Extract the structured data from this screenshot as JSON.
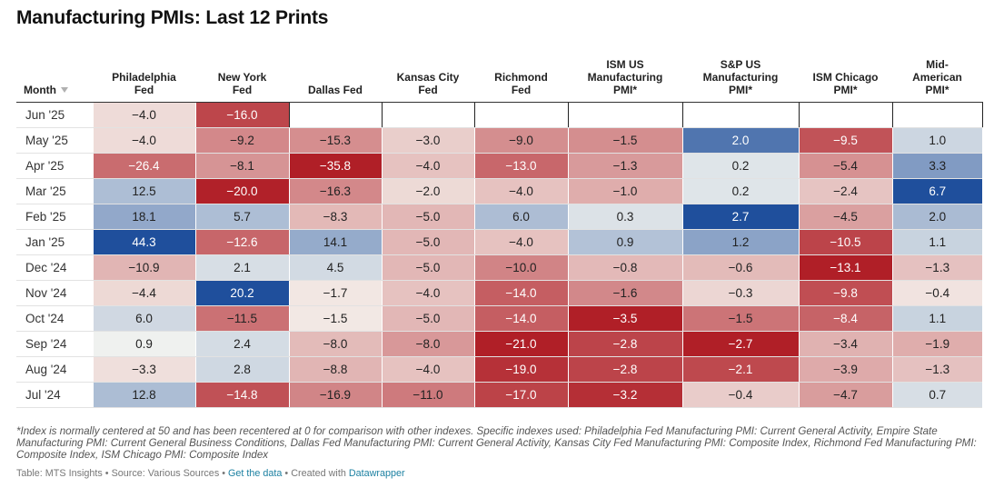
{
  "title": "Manufacturing PMIs: Last 12 Prints",
  "chart_data": {
    "type": "table",
    "columns": [
      "Month",
      "Philadelphia Fed",
      "New York Fed",
      "Dallas Fed",
      "Kansas City Fed",
      "Richmond Fed",
      "ISM US Manufacturing PMI*",
      "S&P US Manufacturing PMI*",
      "ISM Chicago PMI*",
      "Mid-American PMI*"
    ],
    "column_label_lines": [
      [
        "Month"
      ],
      [
        "Philadelphia",
        "Fed"
      ],
      [
        "New York",
        "Fed"
      ],
      [
        "Dallas Fed"
      ],
      [
        "Kansas City",
        "Fed"
      ],
      [
        "Richmond",
        "Fed"
      ],
      [
        "ISM US",
        "Manufacturing",
        "PMI*"
      ],
      [
        "S&P US",
        "Manufacturing",
        "PMI*"
      ],
      [
        "ISM Chicago",
        "PMI*"
      ],
      [
        "Mid-",
        "American",
        "PMI*"
      ]
    ],
    "rows": [
      {
        "month": "Jun '25",
        "values": [
          "−4.0",
          "−16.0",
          "",
          "",
          "",
          "",
          "",
          "",
          ""
        ]
      },
      {
        "month": "May '25",
        "values": [
          "−4.0",
          "−9.2",
          "−15.3",
          "−3.0",
          "−9.0",
          "−1.5",
          "2.0",
          "−9.5",
          "1.0"
        ]
      },
      {
        "month": "Apr '25",
        "values": [
          "−26.4",
          "−8.1",
          "−35.8",
          "−4.0",
          "−13.0",
          "−1.3",
          "0.2",
          "−5.4",
          "3.3"
        ]
      },
      {
        "month": "Mar '25",
        "values": [
          "12.5",
          "−20.0",
          "−16.3",
          "−2.0",
          "−4.0",
          "−1.0",
          "0.2",
          "−2.4",
          "6.7"
        ]
      },
      {
        "month": "Feb '25",
        "values": [
          "18.1",
          "5.7",
          "−8.3",
          "−5.0",
          "6.0",
          "0.3",
          "2.7",
          "−4.5",
          "2.0"
        ]
      },
      {
        "month": "Jan '25",
        "values": [
          "44.3",
          "−12.6",
          "14.1",
          "−5.0",
          "−4.0",
          "0.9",
          "1.2",
          "−10.5",
          "1.1"
        ]
      },
      {
        "month": "Dec '24",
        "values": [
          "−10.9",
          "2.1",
          "4.5",
          "−5.0",
          "−10.0",
          "−0.8",
          "−0.6",
          "−13.1",
          "−1.3"
        ]
      },
      {
        "month": "Nov '24",
        "values": [
          "−4.4",
          "20.2",
          "−1.7",
          "−4.0",
          "−14.0",
          "−1.6",
          "−0.3",
          "−9.8",
          "−0.4"
        ]
      },
      {
        "month": "Oct '24",
        "values": [
          "6.0",
          "−11.5",
          "−1.5",
          "−5.0",
          "−14.0",
          "−3.5",
          "−1.5",
          "−8.4",
          "1.1"
        ]
      },
      {
        "month": "Sep '24",
        "values": [
          "0.9",
          "2.4",
          "−8.0",
          "−8.0",
          "−21.0",
          "−2.8",
          "−2.7",
          "−3.4",
          "−1.9"
        ]
      },
      {
        "month": "Aug '24",
        "values": [
          "−3.3",
          "2.8",
          "−8.8",
          "−4.0",
          "−19.0",
          "−2.8",
          "−2.1",
          "−3.9",
          "−1.3"
        ]
      },
      {
        "month": "Jul '24",
        "values": [
          "12.8",
          "−14.8",
          "−16.9",
          "−11.0",
          "−17.0",
          "−3.2",
          "−0.4",
          "−4.7",
          "0.7"
        ]
      }
    ],
    "color_scale_max": [
      44.3,
      20.2,
      35.8,
      21.0,
      21.0,
      3.5,
      2.7,
      13.1,
      6.7
    ],
    "colors": {
      "negative": "#b01f27",
      "neutral": "#f7f7f2",
      "positive": "#1f4f9c"
    }
  },
  "footnote": "*Index is normally centered at 50 and has been recentered at 0 for comparison with other indexes. Specific indexes used: Philadelphia Fed Manufacturing PMI: Current General Activity, Empire State Manufacturing PMI: Current General Business Conditions, Dallas Fed Manufacturing PMI: Current General Activity, Kansas City Fed Manufacturing PMI: Composite Index, Richmond Fed Manufacturing PMI: Composite Index, ISM Chicago PMI: Composite Index",
  "credits": {
    "table_prefix": "Table: MTS Insights • Source: Various Sources • ",
    "data_link": "Get the data",
    "created_prefix": " • Created with ",
    "tool_link": "Datawrapper"
  }
}
